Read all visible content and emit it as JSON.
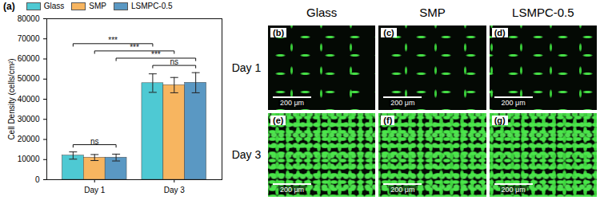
{
  "chart_data": {
    "type": "bar",
    "title": "(a)",
    "y_label": "Cell Density (cells/cm²)",
    "categories": [
      "Day 1",
      "Day 3"
    ],
    "series": [
      {
        "name": "Glass",
        "color": "#4ec9d3",
        "values": [
          12000,
          48000
        ],
        "errors": [
          1800,
          4600
        ]
      },
      {
        "name": "SMP",
        "color": "#f7b560",
        "values": [
          11000,
          47000
        ],
        "errors": [
          1500,
          3800
        ]
      },
      {
        "name": "LSMPC-0.5",
        "color": "#5a98c3",
        "values": [
          11000,
          48200
        ],
        "errors": [
          1700,
          5000
        ]
      }
    ],
    "ylim": [
      0,
      80000
    ],
    "yticks": [
      0,
      10000,
      20000,
      30000,
      40000,
      50000,
      60000,
      70000,
      80000
    ],
    "grid": false,
    "legend": "top-left",
    "annotations": [
      {
        "text": "ns",
        "from": [
          "Day 1",
          "Glass"
        ],
        "to": [
          "Day 1",
          "LSMPC-0.5"
        ]
      },
      {
        "text": "ns",
        "from": [
          "Day 3",
          "Glass"
        ],
        "to": [
          "Day 3",
          "LSMPC-0.5"
        ]
      },
      {
        "text": "***",
        "from": [
          "Day 1",
          "LSMPC-0.5"
        ],
        "to": [
          "Day 3",
          "LSMPC-0.5"
        ]
      },
      {
        "text": "***",
        "from": [
          "Day 1",
          "SMP"
        ],
        "to": [
          "Day 3",
          "SMP"
        ]
      },
      {
        "text": "***",
        "from": [
          "Day 1",
          "Glass"
        ],
        "to": [
          "Day 3",
          "Glass"
        ]
      }
    ]
  },
  "micrographs": {
    "columns": [
      "Glass",
      "SMP",
      "LSMPC-0.5"
    ],
    "rows": [
      {
        "label": "Day 1",
        "panels": [
          "(b)",
          "(c)",
          "(d)"
        ]
      },
      {
        "label": "Day 3",
        "panels": [
          "(e)",
          "(f)",
          "(g)"
        ]
      }
    ],
    "scale_bar": "200 μm"
  }
}
